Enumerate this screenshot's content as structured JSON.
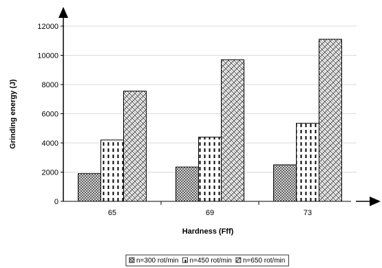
{
  "chart_data": {
    "type": "bar",
    "title": "",
    "xlabel": "Hardness (Fff)",
    "ylabel": "Grinding energy (J)",
    "categories": [
      "65",
      "69",
      "73"
    ],
    "ylim": [
      0,
      12000
    ],
    "yticks": [
      0,
      2000,
      4000,
      6000,
      8000,
      10000,
      12000
    ],
    "grid": "horizontal",
    "legend_position": "bottom",
    "series": [
      {
        "name": "n=300 rot/min",
        "values": [
          1900,
          2350,
          2500
        ],
        "pattern": "crosshatch"
      },
      {
        "name": "n=450 rot/min",
        "values": [
          4200,
          4400,
          5350
        ],
        "pattern": "dashes"
      },
      {
        "name": "n=650 rot/min",
        "values": [
          7550,
          9700,
          11100
        ],
        "pattern": "weave"
      }
    ]
  }
}
